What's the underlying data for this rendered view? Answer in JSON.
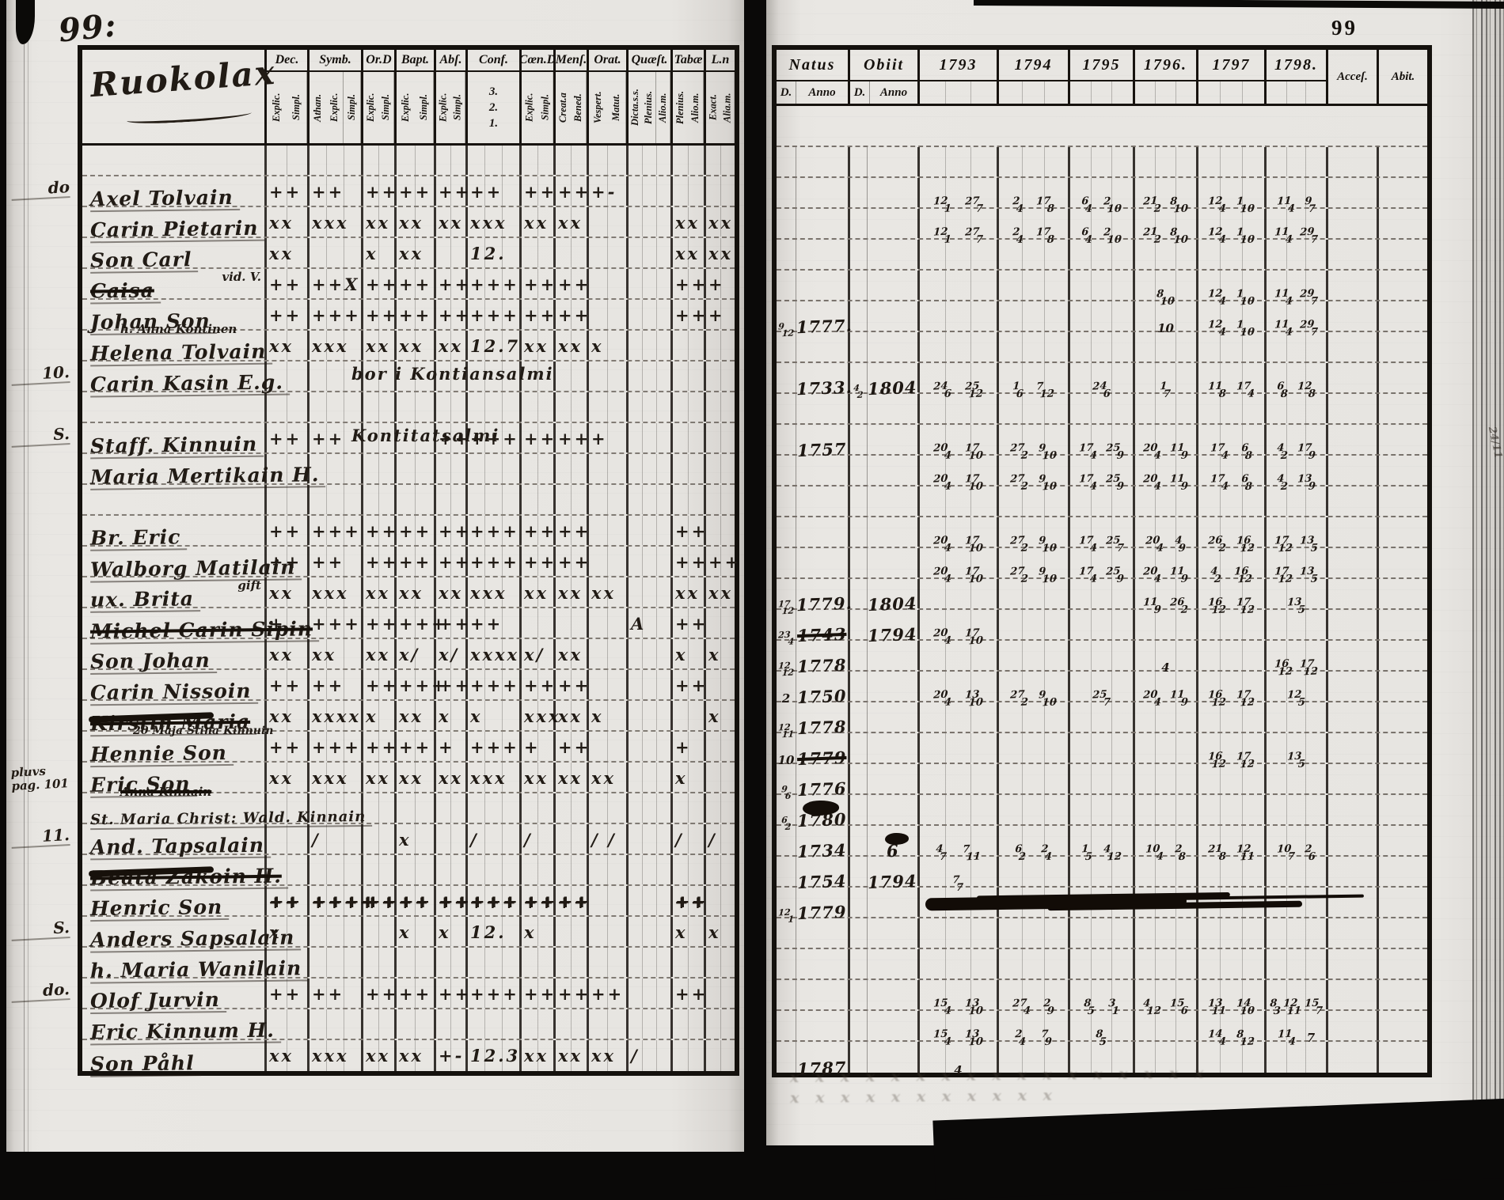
{
  "left_page": {
    "page_no": "99:",
    "heading": "Ruokolax",
    "columns": [
      {
        "label": "Dec.",
        "subs": [
          "Explic.",
          "Simpl."
        ]
      },
      {
        "label": "Symb.",
        "subs": [
          "Athan.",
          "Explic.",
          "Simpl."
        ]
      },
      {
        "label": "Or.D",
        "subs": [
          "Explic.",
          "Simpl."
        ]
      },
      {
        "label": "Bapt.",
        "subs": [
          "Explic.",
          "Simpl."
        ]
      },
      {
        "label": "Abſ.",
        "subs": [
          "Explic.",
          "Simpl."
        ]
      },
      {
        "label": "Conf.",
        "subs": [
          "3.",
          "2.",
          "1."
        ],
        "stacked": true
      },
      {
        "label": "Cœn.D",
        "subs": [
          "Explic.",
          "Simpl."
        ]
      },
      {
        "label": "Menſ.",
        "subs": [
          "Creat.a",
          "Bened."
        ]
      },
      {
        "label": "Orat.",
        "subs": [
          "Vespert.",
          "Matut."
        ]
      },
      {
        "label": "Quæſt.",
        "subs": [
          "Dicta.s.s.",
          "Plenius.",
          "Alio.m."
        ]
      },
      {
        "label": "Tabæ",
        "subs": [
          "Plenius.",
          "Alio.m."
        ]
      },
      {
        "label": "L.n",
        "subs": [
          "Exact.",
          "Alia.m."
        ]
      }
    ]
  },
  "right_page": {
    "page_no": "99",
    "natus": {
      "label": "Natus",
      "subs": [
        "D.",
        "Anno"
      ]
    },
    "obiit": {
      "label": "Obiit",
      "subs": [
        "D.",
        "Anno"
      ]
    },
    "years": [
      "1793",
      "1794",
      "1795",
      "1796.",
      "1797",
      "1798."
    ],
    "acces": "Acceſ.",
    "abit": "Abit.",
    "edge_note": "24/11",
    "ghost": {
      "line1": "x x x x x x x x x x x x x x x x x",
      "line2": "x x  x x x  x x x x  x x"
    }
  },
  "rows": [
    {},
    {
      "margin": "do",
      "name": "Axel Tolvain",
      "marks": [
        "++",
        "++",
        "++",
        "++",
        "++",
        "++",
        "++",
        "++",
        "+-",
        "",
        "",
        ""
      ],
      "years": [
        "12/1 27/7",
        "2/4 17/8",
        "6/4 2/10",
        "21/2 8/10",
        "12/4 1/10",
        "11/4 9/7"
      ]
    },
    {
      "name": "Carin Pietarin",
      "marks": [
        "xx",
        "xxx",
        "xx",
        "xx",
        "xx",
        "xxx",
        "xx",
        "xx",
        "",
        "",
        "xx",
        "xx"
      ],
      "years": [
        "12/1 27/7",
        "2/4 17/8",
        "6/4 2/10",
        "21/2 8/10",
        "12/4 1/10",
        "11/4 29/7"
      ]
    },
    {
      "name": "Son Carl",
      "marks": [
        "xx",
        "",
        "x",
        "xx",
        "",
        "12.",
        "",
        "",
        "",
        "",
        "xx",
        "xx"
      ],
      "years": [
        "",
        "",
        "",
        "",
        "",
        ""
      ]
    },
    {
      "name": "Caisa",
      "struck": true,
      "side_note": "vid. V.",
      "marks": [
        "++",
        "++X",
        "++",
        "++",
        "++",
        "+++",
        "++",
        "++",
        "",
        "",
        "++",
        "+"
      ],
      "years": [
        "",
        "",
        "",
        "8/10",
        "12/4 1/10",
        "11/4 29/7"
      ]
    },
    {
      "name": "Johan Son",
      "below": "h. Anna Kontinen",
      "marks": [
        "++",
        "+++",
        "++",
        "++",
        "++",
        "+++",
        "++",
        "++",
        "",
        "",
        "++",
        "+"
      ],
      "natus_d": "9/12",
      "natus": "1777.",
      "years": [
        "",
        "",
        "",
        "10",
        "12/4 1/10",
        "11/4 29/7"
      ]
    },
    {
      "name": "Helena Tolvain",
      "marks": [
        "xx",
        "xxx",
        "xx",
        "xx",
        "xx",
        "12.7",
        "xx",
        "xx",
        "x",
        "",
        "",
        ""
      ],
      "years": [
        "",
        "",
        "",
        "",
        "",
        ""
      ]
    },
    {
      "margin": "10.",
      "name": "Carin Kasin E.g.",
      "row_note": "bor i Kontiansalmi",
      "natus": "1733.",
      "obiit_d": "4/2",
      "obiit": "1804",
      "years": [
        "24/6 25/12",
        "1/6 7/12",
        "24/6",
        "1/7",
        "11/8 17/4",
        "6/8 12/8"
      ]
    },
    {},
    {
      "margin": "S.",
      "name": "Staff. Kinnuin",
      "row_note": "Kontitatsalmi",
      "marks": [
        "++",
        "++",
        "",
        "",
        "++",
        "+++",
        "++",
        "++",
        "+",
        "",
        "",
        ""
      ],
      "natus": "1757",
      "years": [
        "20/4 17/10",
        "27/2 9/10",
        "17/4 25/9",
        "20/4 11/9",
        "17/4 6/8",
        "4/2 17/9"
      ]
    },
    {
      "name": "Maria Mertikain H.",
      "years": [
        "20/4 17/10",
        "27/2 9/10",
        "17/4 25/9",
        "20/4 11/9",
        "17/4 6/8",
        "4/2 13/9"
      ]
    },
    {},
    {
      "name": "Br. Eric",
      "marks": [
        "++",
        "+++",
        "++",
        "++",
        "++",
        "+++",
        "++",
        "++",
        "",
        "",
        "++",
        ""
      ],
      "years": [
        "20/4 17/10",
        "27/2 9/10",
        "17/4 25/7",
        "20/4 4/9",
        "26/2 16/12",
        "17/12 13/5"
      ]
    },
    {
      "name": "Walborg Matilain",
      "marks": [
        "++",
        "++",
        "++",
        "++",
        "++",
        "+++",
        "++",
        "++",
        "",
        "",
        "++",
        "++"
      ],
      "years": [
        "20/4 17/10",
        "27/2 9/10",
        "17/4 25/9",
        "20/4 11/9",
        "4/2 16/12",
        "17/12 13/5"
      ]
    },
    {
      "name": "ux. Brita",
      "side_note": "gift",
      "marks": [
        "xx",
        "xxx",
        "xx",
        "xx",
        "xx",
        "xxx",
        "xx",
        "xx",
        "xx",
        "",
        "xx",
        "xx"
      ],
      "natus_d": "17/12",
      "natus": "1779.",
      "obiit": "1804",
      "years": [
        "",
        "",
        "",
        "11/9 26/2",
        "16/12 17/12",
        "13/5"
      ]
    },
    {
      "name": "Michel Carin Sipin",
      "struck": true,
      "marks": [
        "+",
        "+++",
        "++",
        "+++",
        "++",
        "++",
        "",
        "",
        "",
        "A",
        "++",
        ""
      ],
      "natus_d": "23/4",
      "natus": "1743",
      "natus_struck": true,
      "obiit": "1794",
      "years": [
        "20/4 17/10",
        "",
        "",
        "",
        "",
        ""
      ]
    },
    {
      "name": "Son Johan",
      "marks": [
        "xx",
        "xx",
        "xx",
        "x/",
        "x/",
        "xxxx",
        "x/",
        "xx",
        "",
        "",
        "x",
        "x"
      ],
      "natus_d": "12/12",
      "natus": "1778",
      "years": [
        "",
        "",
        "",
        "4",
        "",
        "16/12 17/12"
      ]
    },
    {
      "name": "Carin Nissoin",
      "marks": [
        "++",
        "++",
        "++",
        "+++",
        "++",
        "+++",
        "++",
        "++",
        "",
        "",
        "++",
        ""
      ],
      "natus_d": "2",
      "natus": "1750",
      "years": [
        "20/4 13/10",
        "27/2 9/10",
        "25/7",
        "20/4 11/9",
        "16/12 17/12",
        "12/5"
      ]
    },
    {
      "name": "Kirstin Maria",
      "struck": true,
      "heavy": true,
      "marks": [
        "xx",
        "xxxx",
        "x",
        "xx",
        "x",
        "x",
        "xxx",
        "xx",
        "x",
        "",
        "",
        "x"
      ],
      "natus_d": "12/11",
      "natus": "1778"
    },
    {
      "name": "Hennie Son",
      "above": "20 Maja Stina Kinnuin",
      "marks": [
        "++",
        "+++",
        "++",
        "++",
        "+",
        "+++",
        "+",
        "++",
        "",
        "",
        "+",
        ""
      ],
      "natus_d": "10",
      "natus": "1779",
      "natus_struck": true,
      "years": [
        "",
        "",
        "",
        "",
        "16/12 17/12",
        "13/5"
      ]
    },
    {
      "margin": "pluvs pag. 101",
      "margin_small": true,
      "name": "Eric Son",
      "below": "Anna Kinnain",
      "below_struck": true,
      "marks": [
        "xx",
        "xxx",
        "xx",
        "xx",
        "xx",
        "xxx",
        "xx",
        "xx",
        "xx",
        "",
        "x",
        ""
      ],
      "natus_d": "9/6",
      "natus": "1776"
    },
    {
      "name": "St. Maria Christ: Wald. Kinnain",
      "natus_d": "6/2",
      "natus": "1780",
      "natus_blot": true
    },
    {
      "margin": "11.",
      "name": "And. Tapsalain",
      "marks": [
        "",
        "/",
        "",
        "x",
        "",
        "/",
        "/",
        "",
        "/ /",
        "",
        "/",
        "/"
      ],
      "natus": "1734",
      "obiit": "6",
      "obiit_blot": true,
      "years": [
        "4/7 7/11",
        "6/2 2/4",
        "1/5 4/12",
        "10/4 2/8",
        "21/8 12/11",
        "10/7 2/6"
      ]
    },
    {
      "name": "Beata Zakoin H.",
      "struck": true,
      "heavy": true,
      "natus": "1754",
      "obiit": "1794",
      "years": [
        "7/7",
        "",
        "",
        "",
        "",
        ""
      ]
    },
    {
      "name": "Henric Son",
      "heavy_marks": true,
      "marks": [
        "++",
        "++++",
        "++",
        "++",
        "++",
        "+++",
        "++",
        "++",
        "",
        "",
        "++",
        ""
      ],
      "natus_d": "12/1",
      "natus": "1779",
      "blot_row": true
    },
    {
      "margin": "S.",
      "name": "Anders Sapsalain",
      "marks": [
        "x",
        "",
        "",
        "x",
        "x",
        "12.",
        "x",
        "",
        "",
        "",
        "x",
        "x"
      ]
    },
    {
      "name": "h. Maria Wanilain"
    },
    {
      "margin": "do.",
      "name": "Olof Jurvin",
      "marks": [
        "++",
        "++",
        "++",
        "++",
        "++",
        "+++",
        "++",
        "++",
        "++",
        "",
        "++",
        ""
      ],
      "years": [
        "15/4 13/10",
        "27/4 2/9",
        "8/5 3/1",
        "4/12 15/6",
        "13/11 14/10",
        "8/3 12/11 15/7"
      ]
    },
    {
      "name": "Eric Kinnum H.",
      "years": [
        "15/4 13/10",
        "2/4 7/9",
        "8/5",
        "",
        "14/4 8/12",
        "11/4 7"
      ]
    },
    {
      "name": "Son Påhl",
      "marks": [
        "xx",
        "xxx",
        "xx",
        "xx",
        "+-",
        "12.3",
        "xx",
        "xx",
        "xx",
        "/",
        "",
        ""
      ],
      "natus": "1787",
      "years": [
        "4",
        "",
        "",
        "",
        "",
        ""
      ]
    }
  ]
}
